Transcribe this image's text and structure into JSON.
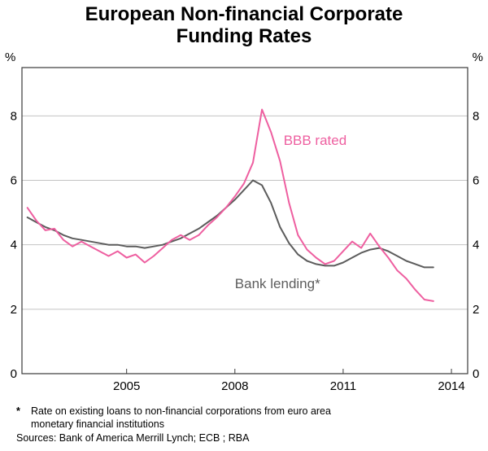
{
  "title": {
    "line1": "European Non-financial Corporate",
    "line2": "Funding Rates"
  },
  "chart_data": {
    "type": "line",
    "title": "European Non-financial Corporate Funding Rates",
    "ylabel_left": "%",
    "ylabel_right": "%",
    "ylim": [
      0,
      9.5
    ],
    "xlim": [
      2002.1,
      2014.45
    ],
    "y_ticks": [
      0,
      2,
      4,
      6,
      8
    ],
    "x_ticks": [
      2005,
      2008,
      2011,
      2014
    ],
    "grid": "horizontal",
    "grid_color": "#c3c3c3",
    "axis_color": "#3a3a3a",
    "legend_position": "inline-annotations",
    "x": [
      2002.25,
      2002.5,
      2002.75,
      2003,
      2003.25,
      2003.5,
      2003.75,
      2004,
      2004.25,
      2004.5,
      2004.75,
      2005,
      2005.25,
      2005.5,
      2005.75,
      2006,
      2006.25,
      2006.5,
      2006.75,
      2007,
      2007.25,
      2007.5,
      2007.75,
      2008,
      2008.25,
      2008.5,
      2008.75,
      2009,
      2009.25,
      2009.5,
      2009.75,
      2010,
      2010.25,
      2010.5,
      2010.75,
      2011,
      2011.25,
      2011.5,
      2011.75,
      2012,
      2012.25,
      2012.5,
      2012.75,
      2013,
      2013.25,
      2013.5
    ],
    "series": [
      {
        "name": "Bank lending*",
        "color": "#5c5c5c",
        "values": [
          4.85,
          4.7,
          4.55,
          4.45,
          4.3,
          4.2,
          4.15,
          4.1,
          4.05,
          4.0,
          4.0,
          3.95,
          3.95,
          3.9,
          3.95,
          4.0,
          4.1,
          4.2,
          4.35,
          4.5,
          4.7,
          4.9,
          5.15,
          5.4,
          5.7,
          6.0,
          5.85,
          5.3,
          4.55,
          4.05,
          3.7,
          3.5,
          3.4,
          3.35,
          3.35,
          3.45,
          3.6,
          3.75,
          3.85,
          3.9,
          3.8,
          3.65,
          3.5,
          3.4,
          3.3,
          3.3
        ]
      },
      {
        "name": "BBB rated",
        "color": "#ee5fa0",
        "values": [
          5.15,
          4.75,
          4.45,
          4.5,
          4.15,
          3.95,
          4.1,
          3.95,
          3.8,
          3.65,
          3.8,
          3.6,
          3.7,
          3.45,
          3.65,
          3.9,
          4.15,
          4.3,
          4.15,
          4.3,
          4.6,
          4.85,
          5.15,
          5.5,
          5.9,
          6.55,
          8.2,
          7.5,
          6.6,
          5.3,
          4.3,
          3.85,
          3.6,
          3.4,
          3.5,
          3.8,
          4.1,
          3.9,
          4.35,
          3.95,
          3.6,
          3.2,
          2.95,
          2.6,
          2.3,
          2.25
        ]
      }
    ],
    "annotations": [
      {
        "text": "BBB rated",
        "x": 2009.35,
        "y": 7.1,
        "color": "#ee5fa0"
      },
      {
        "text": "Bank lending*",
        "x": 2008.0,
        "y": 2.65,
        "color": "#5c5c5c"
      }
    ]
  },
  "footnote": {
    "marker": "*",
    "line1": "Rate on existing loans to non-financial corporations from euro area",
    "line2": "monetary financial institutions",
    "sources": "Sources: Bank of America Merrill Lynch; ECB ; RBA"
  }
}
